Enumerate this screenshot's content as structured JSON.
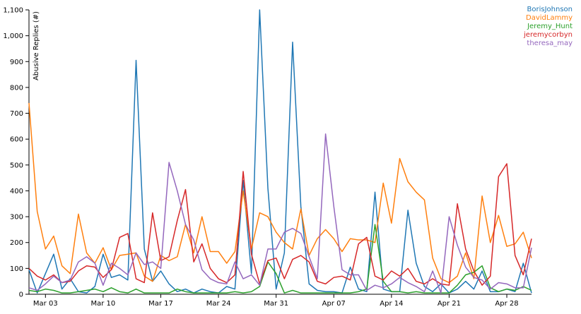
{
  "chart_data": {
    "type": "line",
    "ylabel": "Abusive Replies (#)",
    "ylim": [
      0,
      1100
    ],
    "y_ticks": [
      0,
      100,
      200,
      300,
      400,
      500,
      600,
      700,
      800,
      900,
      1000,
      1100
    ],
    "y_tick_labels": [
      "0",
      "100",
      "200",
      "300",
      "400",
      "500",
      "600",
      "700",
      "800",
      "900",
      "1,000",
      "1,100"
    ],
    "x_start": "2019-03-01",
    "x_end": "2019-05-01",
    "x_ticks": [
      "2019-03-03",
      "2019-03-10",
      "2019-03-17",
      "2019-03-24",
      "2019-03-31",
      "2019-04-07",
      "2019-04-14",
      "2019-04-21",
      "2019-04-28"
    ],
    "x_tick_labels": [
      "Mar 03",
      "Mar 10",
      "Mar 17",
      "Mar 24",
      "Mar 31",
      "Apr 07",
      "Apr 14",
      "Apr 21",
      "Apr 28"
    ],
    "legend_position": "top-right",
    "grid": false,
    "dates": [
      "2019-03-01",
      "2019-03-02",
      "2019-03-03",
      "2019-03-04",
      "2019-03-05",
      "2019-03-06",
      "2019-03-07",
      "2019-03-08",
      "2019-03-09",
      "2019-03-10",
      "2019-03-11",
      "2019-03-12",
      "2019-03-13",
      "2019-03-14",
      "2019-03-15",
      "2019-03-16",
      "2019-03-17",
      "2019-03-18",
      "2019-03-19",
      "2019-03-20",
      "2019-03-21",
      "2019-03-22",
      "2019-03-23",
      "2019-03-24",
      "2019-03-25",
      "2019-03-26",
      "2019-03-27",
      "2019-03-28",
      "2019-03-29",
      "2019-03-30",
      "2019-03-31",
      "2019-04-01",
      "2019-04-02",
      "2019-04-03",
      "2019-04-04",
      "2019-04-05",
      "2019-04-06",
      "2019-04-07",
      "2019-04-08",
      "2019-04-09",
      "2019-04-10",
      "2019-04-11",
      "2019-04-12",
      "2019-04-13",
      "2019-04-14",
      "2019-04-15",
      "2019-04-16",
      "2019-04-17",
      "2019-04-18",
      "2019-04-19",
      "2019-04-20",
      "2019-04-21",
      "2019-04-22",
      "2019-04-23",
      "2019-04-24",
      "2019-04-25",
      "2019-04-26",
      "2019-04-27",
      "2019-04-28",
      "2019-04-29",
      "2019-04-30",
      "2019-05-01"
    ],
    "series": [
      {
        "name": "BorisJohnson",
        "color": "#1f77b4",
        "values": [
          95,
          5,
          80,
          155,
          20,
          60,
          10,
          5,
          30,
          155,
          65,
          75,
          55,
          905,
          175,
          50,
          90,
          40,
          10,
          20,
          5,
          20,
          10,
          5,
          30,
          20,
          440,
          80,
          1100,
          410,
          20,
          160,
          975,
          340,
          40,
          15,
          10,
          10,
          5,
          105,
          20,
          10,
          395,
          20,
          10,
          10,
          325,
          120,
          30,
          10,
          40,
          5,
          20,
          50,
          20,
          90,
          10,
          10,
          20,
          10,
          120,
          5
        ]
      },
      {
        "name": "DavidLammy",
        "color": "#ff7f0e",
        "values": [
          740,
          320,
          175,
          225,
          110,
          80,
          310,
          160,
          120,
          180,
          95,
          150,
          155,
          160,
          70,
          50,
          150,
          130,
          145,
          270,
          160,
          300,
          165,
          165,
          120,
          165,
          400,
          175,
          315,
          300,
          240,
          200,
          175,
          330,
          150,
          215,
          250,
          215,
          165,
          215,
          210,
          210,
          200,
          430,
          275,
          525,
          435,
          395,
          365,
          140,
          60,
          45,
          70,
          160,
          60,
          380,
          200,
          305,
          185,
          195,
          240,
          140
        ]
      },
      {
        "name": "Jeremy_Hunt",
        "color": "#2ca02c",
        "values": [
          15,
          10,
          20,
          15,
          5,
          5,
          10,
          15,
          20,
          10,
          25,
          10,
          5,
          20,
          5,
          5,
          5,
          5,
          20,
          10,
          5,
          5,
          5,
          5,
          5,
          10,
          5,
          10,
          30,
          125,
          80,
          5,
          15,
          5,
          5,
          5,
          5,
          5,
          5,
          5,
          10,
          20,
          270,
          50,
          10,
          10,
          5,
          10,
          5,
          5,
          5,
          5,
          35,
          75,
          85,
          110,
          25,
          10,
          20,
          15,
          30,
          15
        ]
      },
      {
        "name": "jeremycorbyn",
        "color": "#d62728",
        "values": [
          100,
          70,
          55,
          75,
          45,
          50,
          90,
          110,
          105,
          65,
          95,
          220,
          235,
          60,
          45,
          315,
          130,
          145,
          285,
          405,
          125,
          195,
          100,
          60,
          45,
          75,
          475,
          155,
          40,
          130,
          140,
          60,
          135,
          150,
          125,
          50,
          40,
          65,
          70,
          55,
          195,
          220,
          70,
          55,
          90,
          70,
          100,
          50,
          40,
          60,
          40,
          35,
          350,
          175,
          90,
          35,
          70,
          455,
          505,
          150,
          75,
          215
        ]
      },
      {
        "name": "theresa_may",
        "color": "#9467bd",
        "values": [
          25,
          15,
          40,
          70,
          45,
          55,
          125,
          145,
          120,
          35,
          120,
          100,
          75,
          160,
          115,
          125,
          100,
          510,
          400,
          270,
          210,
          95,
          60,
          45,
          40,
          125,
          60,
          75,
          35,
          175,
          175,
          240,
          255,
          235,
          145,
          60,
          620,
          340,
          95,
          75,
          75,
          15,
          35,
          25,
          40,
          65,
          45,
          30,
          10,
          90,
          5,
          300,
          190,
          105,
          65,
          55,
          20,
          45,
          40,
          25,
          25,
          180
        ]
      }
    ]
  }
}
